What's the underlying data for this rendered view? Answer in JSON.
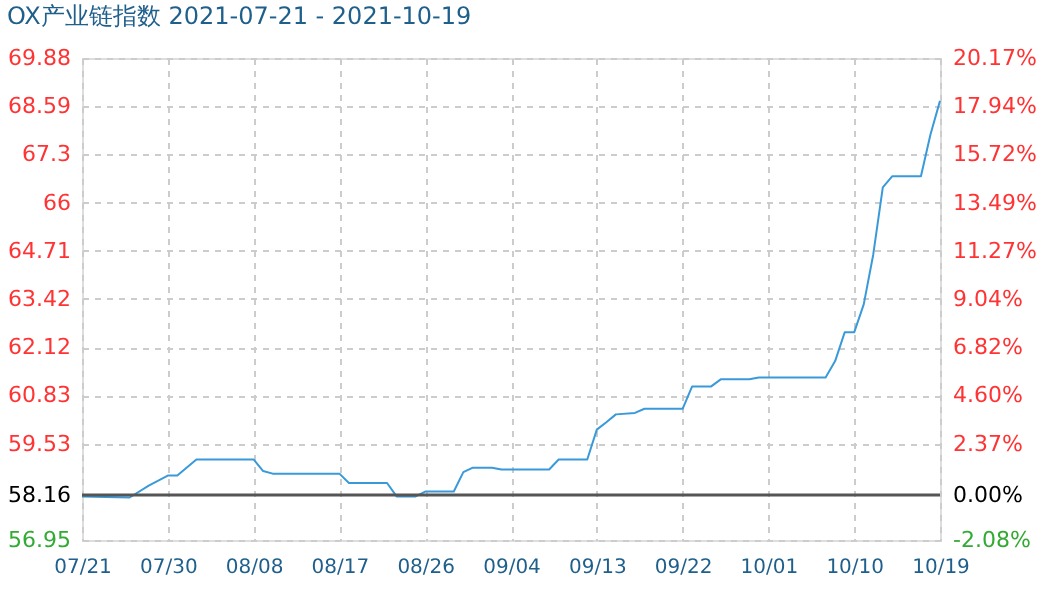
{
  "chart_data": {
    "type": "line",
    "title": "OX产业链指数 2021-07-21 - 2021-10-19",
    "x": [
      "2021-07-21",
      "2021-07-26",
      "2021-07-28",
      "2021-07-30",
      "2021-07-31",
      "2021-08-02",
      "2021-08-08",
      "2021-08-09",
      "2021-08-10",
      "2021-08-17",
      "2021-08-18",
      "2021-08-22",
      "2021-08-23",
      "2021-08-25",
      "2021-08-26",
      "2021-08-29",
      "2021-08-30",
      "2021-08-31",
      "2021-09-02",
      "2021-09-03",
      "2021-09-08",
      "2021-09-09",
      "2021-09-12",
      "2021-09-13",
      "2021-09-14",
      "2021-09-15",
      "2021-09-17",
      "2021-09-18",
      "2021-09-22",
      "2021-09-23",
      "2021-09-25",
      "2021-09-26",
      "2021-09-29",
      "2021-09-30",
      "2021-10-07",
      "2021-10-08",
      "2021-10-09",
      "2021-10-10",
      "2021-10-11",
      "2021-10-12",
      "2021-10-13",
      "2021-10-14",
      "2021-10-17",
      "2021-10-18",
      "2021-10-19"
    ],
    "series": [
      {
        "color": "#3a9ad9",
        "values": [
          58.12,
          58.09,
          58.41,
          58.68,
          58.68,
          59.11,
          59.11,
          58.8,
          58.73,
          58.73,
          58.48,
          58.48,
          58.12,
          58.12,
          58.25,
          58.25,
          58.77,
          58.89,
          58.89,
          58.84,
          58.84,
          59.11,
          59.11,
          59.91,
          60.11,
          60.32,
          60.36,
          60.47,
          60.47,
          61.07,
          61.07,
          61.26,
          61.26,
          61.31,
          61.31,
          61.75,
          62.52,
          62.52,
          63.27,
          64.61,
          66.41,
          66.71,
          66.71,
          67.83,
          68.73
        ]
      }
    ],
    "xlim": [
      "2021-07-21",
      "2021-10-19"
    ],
    "xticks": [
      {
        "value": "2021-07-21",
        "label": "07/21"
      },
      {
        "value": "2021-07-30",
        "label": "07/30"
      },
      {
        "value": "2021-08-08",
        "label": "08/08"
      },
      {
        "value": "2021-08-17",
        "label": "08/17"
      },
      {
        "value": "2021-08-26",
        "label": "08/26"
      },
      {
        "value": "2021-09-04",
        "label": "09/04"
      },
      {
        "value": "2021-09-13",
        "label": "09/13"
      },
      {
        "value": "2021-09-22",
        "label": "09/22"
      },
      {
        "value": "2021-10-01",
        "label": "10/01"
      },
      {
        "value": "2021-10-10",
        "label": "10/10"
      },
      {
        "value": "2021-10-19",
        "label": "10/19"
      }
    ],
    "ylim": [
      56.95,
      69.88
    ],
    "yticks": [
      56.95,
      58.16,
      59.53,
      60.83,
      62.12,
      63.42,
      64.71,
      66,
      67.3,
      68.59,
      69.88
    ],
    "y2lim": [
      -2.08,
      20.17
    ],
    "y2ticks": [
      {
        "value": -2.08,
        "label": "-2.08%"
      },
      {
        "value": 0,
        "label": "0.00%"
      },
      {
        "value": 2.37,
        "label": "2.37%"
      },
      {
        "value": 4.6,
        "label": "4.60%"
      },
      {
        "value": 6.82,
        "label": "6.82%"
      },
      {
        "value": 9.04,
        "label": "9.04%"
      },
      {
        "value": 11.27,
        "label": "11.27%"
      },
      {
        "value": 13.49,
        "label": "13.49%"
      },
      {
        "value": 15.72,
        "label": "15.72%"
      },
      {
        "value": 17.94,
        "label": "17.94%"
      },
      {
        "value": 20.17,
        "label": "20.17%"
      }
    ],
    "ref_lines": [
      {
        "axis": "y2",
        "value": 0,
        "color": "#555555"
      }
    ],
    "grid": true,
    "marker": "none",
    "line_style": "solid"
  }
}
